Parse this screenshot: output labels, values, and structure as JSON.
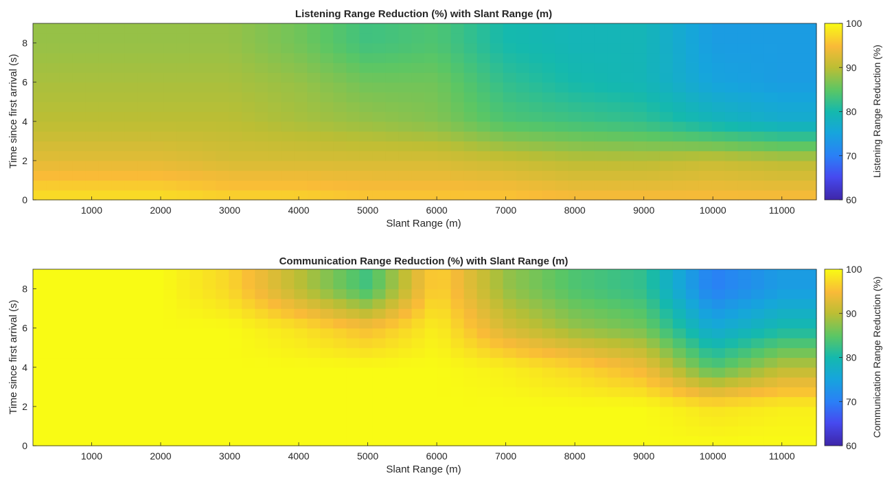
{
  "chart_data": [
    {
      "type": "heatmap",
      "title": "Listening Range Reduction (%) with Slant Range (m)",
      "xlabel": "Slant Range (m)",
      "ylabel": "Time since first arrival (s)",
      "xlim": [
        150,
        11500
      ],
      "ylim": [
        0,
        9
      ],
      "xticks": [
        1000,
        2000,
        3000,
        4000,
        5000,
        6000,
        7000,
        8000,
        9000,
        10000,
        11000
      ],
      "yticks": [
        0,
        2,
        4,
        6,
        8
      ],
      "colorbar": {
        "label": "Listening Range Reduction (%)",
        "range": [
          60,
          100
        ],
        "ticks": [
          60,
          70,
          80,
          90,
          100
        ]
      },
      "colormap": "parula",
      "x_range_columns": [
        1000,
        2000,
        3000,
        4000,
        5000,
        6000,
        7000,
        8000,
        9000,
        10000,
        11000
      ],
      "y_rows": [
        0,
        2,
        4,
        6,
        8
      ],
      "values": [
        [
          98,
          98,
          97,
          97,
          96,
          96,
          96,
          95,
          95,
          95,
          95
        ],
        [
          93,
          93,
          92,
          92,
          92,
          92,
          91,
          90,
          90,
          91,
          90
        ],
        [
          90,
          90,
          90,
          89,
          88,
          87,
          84,
          83,
          82,
          79,
          77
        ],
        [
          89,
          89,
          89,
          88,
          86,
          86,
          82,
          80,
          79,
          75,
          74
        ],
        [
          88,
          88,
          88,
          86,
          83,
          84,
          80,
          79,
          79,
          74,
          74
        ]
      ]
    },
    {
      "type": "heatmap",
      "title": "Communication Range Reduction (%) with Slant Range (m)",
      "xlabel": "Slant Range (m)",
      "ylabel": "Time since first arrival (s)",
      "xlim": [
        150,
        11500
      ],
      "ylim": [
        0,
        9
      ],
      "xticks": [
        1000,
        2000,
        3000,
        4000,
        5000,
        6000,
        7000,
        8000,
        9000,
        10000,
        11000
      ],
      "yticks": [
        0,
        2,
        4,
        6,
        8
      ],
      "colorbar": {
        "label": "Communication Range Reduction (%)",
        "range": [
          60,
          100
        ],
        "ticks": [
          60,
          70,
          80,
          90,
          100
        ]
      },
      "colormap": "parula",
      "x_range_columns": [
        1000,
        2000,
        3000,
        4000,
        5000,
        6000,
        7000,
        8000,
        9000,
        10000,
        11000
      ],
      "y_rows": [
        0,
        2,
        4,
        6,
        8
      ],
      "values": [
        [
          100,
          100,
          100,
          100,
          100,
          100,
          100,
          100,
          100,
          100,
          100
        ],
        [
          100,
          100,
          100,
          100,
          100,
          100,
          100,
          100,
          100,
          98,
          99
        ],
        [
          100,
          100,
          100,
          100,
          100,
          100,
          99,
          97,
          94,
          84,
          90
        ],
        [
          100,
          100,
          100,
          98,
          95,
          99,
          92,
          88,
          86,
          76,
          80
        ],
        [
          100,
          100,
          97,
          90,
          83,
          97,
          88,
          84,
          82,
          70,
          74
        ]
      ]
    }
  ]
}
